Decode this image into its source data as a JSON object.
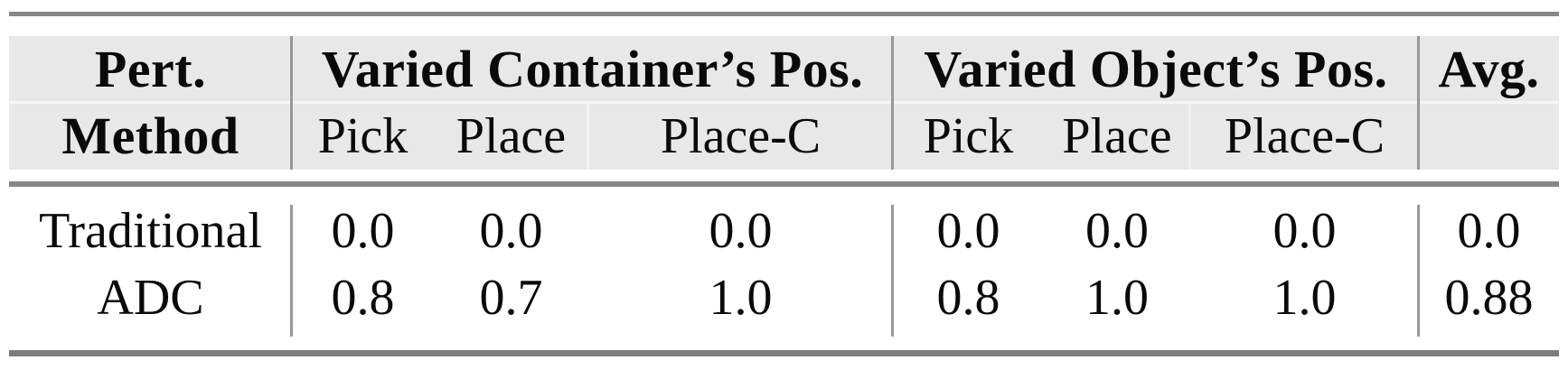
{
  "table": {
    "header": {
      "pert": "Pert.",
      "method": "Method",
      "group1": "Varied Container’s Pos.",
      "group2": "Varied Object’s Pos.",
      "avg": "Avg.",
      "sub": [
        "Pick",
        "Place",
        "Place-C",
        "Pick",
        "Place",
        "Place-C"
      ]
    },
    "rows": [
      {
        "method": "Traditional",
        "values": [
          "0.0",
          "0.0",
          "0.0",
          "0.0",
          "0.0",
          "0.0",
          "0.0"
        ]
      },
      {
        "method": "ADC",
        "values": [
          "0.8",
          "0.7",
          "1.0",
          "0.8",
          "1.0",
          "1.0",
          "0.88"
        ]
      }
    ]
  },
  "colors": {
    "header-bg": "#e8e8e8",
    "rule-color": "#878787",
    "rule-dark-color": "#7d7d7d",
    "divider-color": "#989898"
  },
  "chart_data": {
    "type": "table",
    "column_groups": [
      "Varied Container's Pos.",
      "Varied Object's Pos."
    ],
    "columns": [
      "Pert. Method",
      "Pick",
      "Place",
      "Place-C",
      "Pick",
      "Place",
      "Place-C",
      "Avg."
    ],
    "rows": [
      [
        "Traditional",
        0.0,
        0.0,
        0.0,
        0.0,
        0.0,
        0.0,
        0.0
      ],
      [
        "ADC",
        0.8,
        0.7,
        1.0,
        0.8,
        1.0,
        1.0,
        0.88
      ]
    ]
  }
}
